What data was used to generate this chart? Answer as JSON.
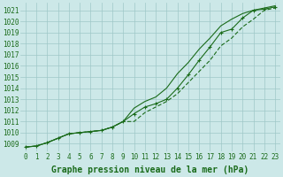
{
  "x": [
    0,
    1,
    2,
    3,
    4,
    5,
    6,
    7,
    8,
    9,
    10,
    11,
    12,
    13,
    14,
    15,
    16,
    17,
    18,
    19,
    20,
    21,
    22,
    23
  ],
  "line_marked": [
    1008.7,
    1008.8,
    1009.1,
    1009.5,
    1009.9,
    1010.0,
    1010.1,
    1010.2,
    1010.5,
    1011.0,
    1011.7,
    1012.3,
    1012.6,
    1013.0,
    1014.0,
    1015.2,
    1016.5,
    1017.7,
    1019.0,
    1019.3,
    1020.3,
    1021.0,
    1021.1,
    1021.3
  ],
  "line_upper": [
    1008.7,
    1008.8,
    1009.1,
    1009.5,
    1009.9,
    1010.0,
    1010.1,
    1010.2,
    1010.5,
    1011.0,
    1012.2,
    1012.8,
    1013.2,
    1014.0,
    1015.3,
    1016.3,
    1017.5,
    1018.5,
    1019.6,
    1020.2,
    1020.7,
    1021.0,
    1021.2,
    1021.4
  ],
  "line_lower": [
    1008.7,
    1008.8,
    1009.1,
    1009.5,
    1009.9,
    1010.0,
    1010.1,
    1010.2,
    1010.5,
    1011.0,
    1011.0,
    1011.8,
    1012.3,
    1012.8,
    1013.5,
    1014.5,
    1015.5,
    1016.5,
    1017.8,
    1018.5,
    1019.5,
    1020.2,
    1021.0,
    1021.2
  ],
  "bg_color": "#cce8e8",
  "grid_color": "#9fc8c8",
  "line_color": "#1a6b1a",
  "xlabel": "Graphe pression niveau de la mer (hPa)",
  "yticks": [
    1009,
    1010,
    1011,
    1012,
    1013,
    1014,
    1015,
    1016,
    1017,
    1018,
    1019,
    1020,
    1021
  ],
  "xticks": [
    0,
    1,
    2,
    3,
    4,
    5,
    6,
    7,
    8,
    9,
    10,
    11,
    12,
    13,
    14,
    15,
    16,
    17,
    18,
    19,
    20,
    21,
    22,
    23
  ],
  "xlim": [
    -0.5,
    23.5
  ],
  "ylim": [
    1008.3,
    1021.7
  ],
  "tick_fontsize": 5.5,
  "xlabel_fontsize": 7.0
}
